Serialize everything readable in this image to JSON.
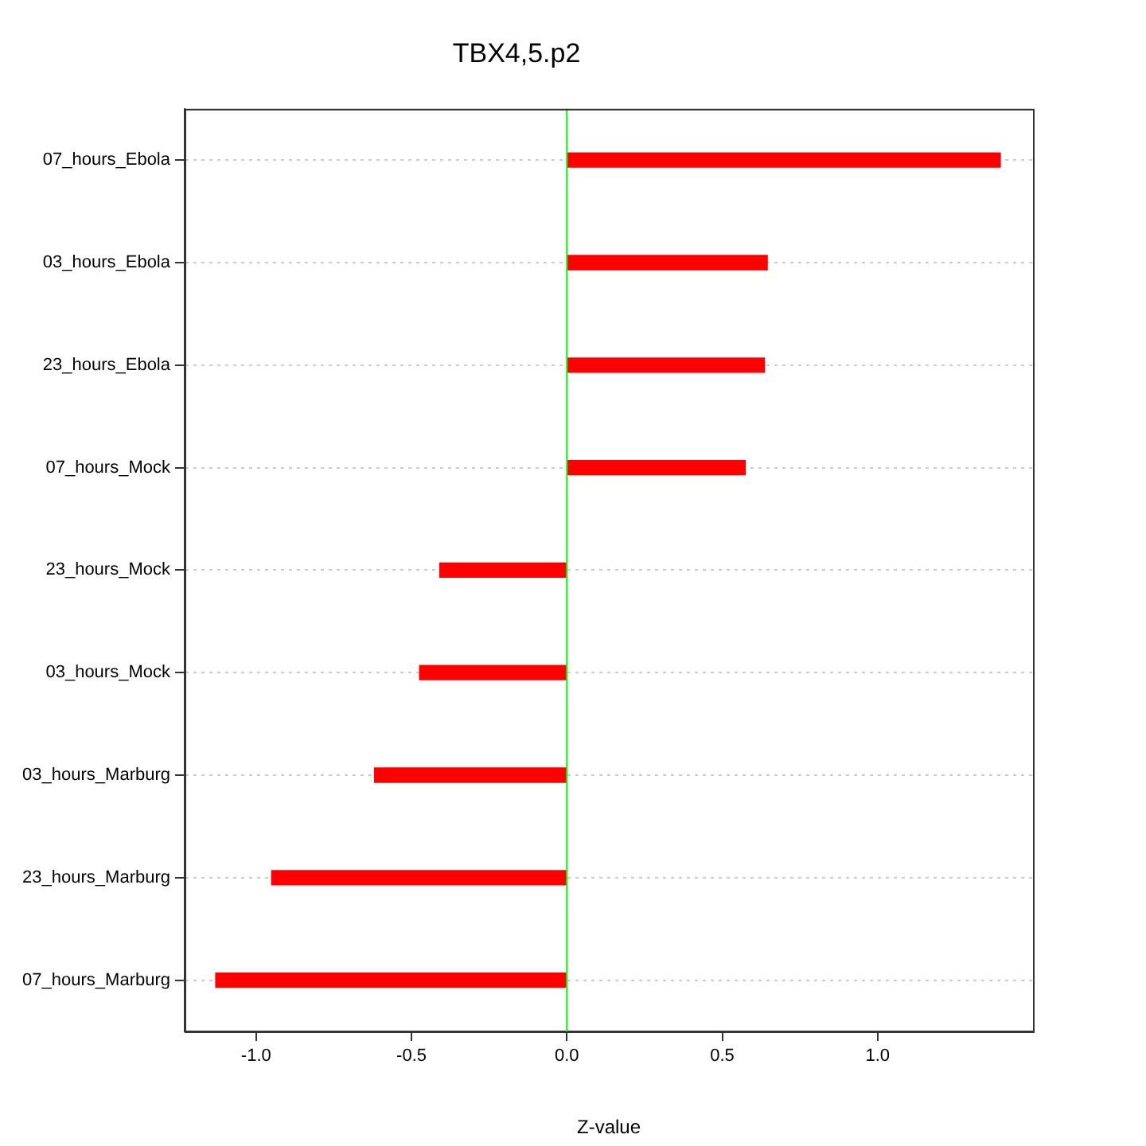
{
  "chart_data": {
    "type": "bar",
    "orientation": "horizontal",
    "title": "TBX4,5.p2",
    "xlabel": "Z-value",
    "categories": [
      "07_hours_Ebola",
      "03_hours_Ebola",
      "23_hours_Ebola",
      "07_hours_Mock",
      "23_hours_Mock",
      "03_hours_Mock",
      "03_hours_Marburg",
      "23_hours_Marburg",
      "07_hours_Marburg"
    ],
    "values": [
      1.395,
      0.645,
      0.636,
      0.574,
      -0.409,
      -0.474,
      -0.619,
      -0.95,
      -1.13
    ],
    "color": "#ff0000",
    "xlim": [
      -1.23,
      1.5
    ],
    "xticks": [
      {
        "value": -1,
        "label": "-1.0"
      },
      {
        "value": -0.5,
        "label": "-0.5"
      },
      {
        "value": 0,
        "label": "0.0"
      },
      {
        "value": 0.5,
        "label": "0.5"
      },
      {
        "value": 1,
        "label": "1.0"
      }
    ],
    "ref_lines": [
      {
        "axis": "x",
        "value": 0,
        "color": "#00ff00"
      }
    ],
    "grid": "y",
    "legend": false
  }
}
